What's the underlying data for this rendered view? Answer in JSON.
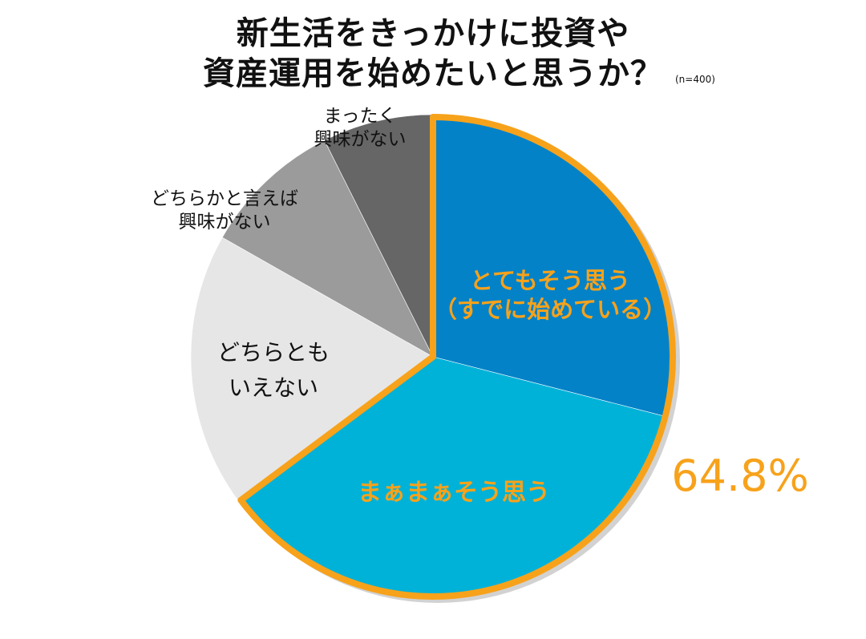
{
  "chart_data": {
    "type": "pie",
    "title_line1": "新生活をきっかけに投資や",
    "title_line2": "資産運用を始めたいと思うか？",
    "sample_note": "(n=400)",
    "slices": [
      {
        "label_lines": [
          "とてもそう思う",
          "（すでに始めている）"
        ],
        "value": 29.0,
        "color": "#0382c8",
        "highlight": true
      },
      {
        "label_lines": [
          "まぁまぁそう思う"
        ],
        "value": 35.8,
        "color": "#00b2d8",
        "highlight": true
      },
      {
        "label_lines": [
          "どちらとも",
          "いえない"
        ],
        "value": 18.4,
        "color": "#e6e6e6",
        "highlight": false
      },
      {
        "label_lines": [
          "どちらかと言えば",
          "興味がない"
        ],
        "value": 9.4,
        "color": "#9b9b9b",
        "highlight": false
      },
      {
        "label_lines": [
          "まったく",
          "興味がない"
        ],
        "value": 7.4,
        "color": "#666666",
        "highlight": false
      }
    ],
    "highlight_total_label": "64.8%",
    "highlight_outline_color": "#f7a21b"
  }
}
